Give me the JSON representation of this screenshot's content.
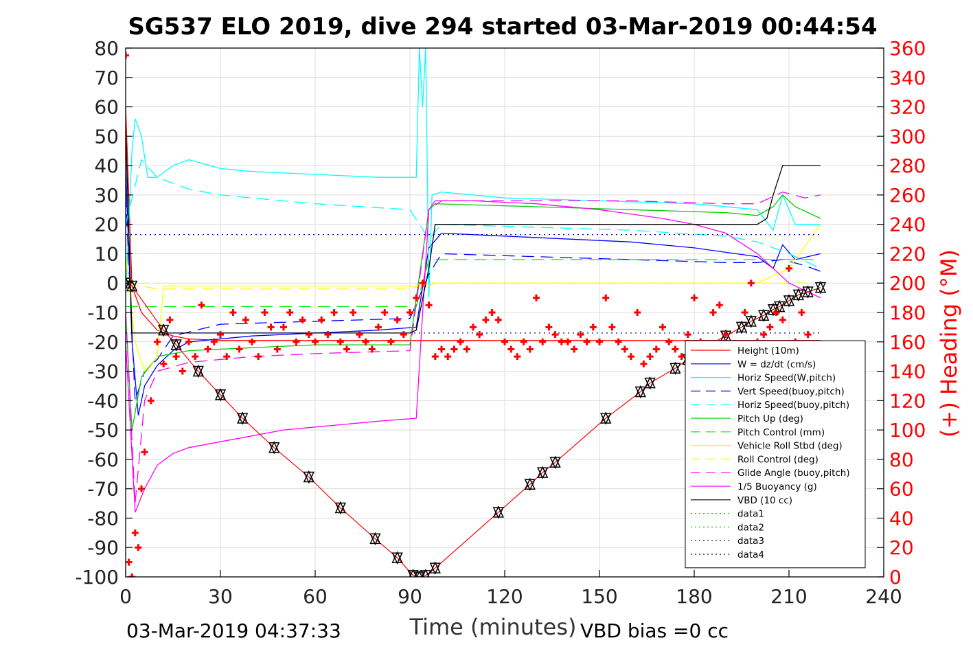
{
  "title": "SG537 ELO 2019, dive 294 started 03-Mar-2019 00:44:54",
  "footer": {
    "end_time": "03-Mar-2019 04:37:33",
    "vbd_bias": "VBD bias =0 cc"
  },
  "chart_data": {
    "type": "line",
    "xlabel": "Time (minutes)",
    "ylabel": "",
    "y2label": "(+) Heading (°M)",
    "xlim": [
      0,
      240
    ],
    "ylim": [
      -100,
      80
    ],
    "y2lim": [
      0,
      360
    ],
    "x_ticks": [
      "0",
      "30",
      "60",
      "90",
      "120",
      "150",
      "180",
      "210",
      "240"
    ],
    "y_ticks": [
      "80",
      "70",
      "60",
      "50",
      "40",
      "30",
      "20",
      "10",
      "0",
      "-10",
      "-20",
      "-30",
      "-40",
      "-50",
      "-60",
      "-70",
      "-80",
      "-90",
      "-100"
    ],
    "y2_ticks": [
      "360",
      "340",
      "320",
      "300",
      "280",
      "260",
      "240",
      "220",
      "200",
      "180",
      "160",
      "140",
      "120",
      "100",
      "80",
      "60",
      "40",
      "20",
      "0"
    ],
    "grid": true,
    "legend_position": "bottom-right",
    "colors": {
      "height": "#ff0000",
      "w": "#0000ff",
      "horiz_w": "#00ffff",
      "vert_buoy": "#0000ff",
      "horiz_buoy": "#00ffff",
      "pitch_up": "#00cc00",
      "pitch_control": "#00ee00",
      "roll": "#ffff00",
      "roll_control": "#ffff00",
      "glide": "#ff00ff",
      "buoyancy": "#ff00ff",
      "vbd": "#000000",
      "heading": "#ff0000"
    },
    "series": [
      {
        "name": "Height (10m)",
        "key": "height",
        "style": "solid",
        "x": [
          0,
          2,
          5,
          10,
          15,
          20,
          30,
          40,
          50,
          60,
          70,
          80,
          90,
          93,
          95,
          98,
          100,
          220
        ],
        "y": [
          60,
          -1,
          -10,
          -16,
          -18,
          -19,
          -19.5,
          -19.5,
          -19.5,
          -19.5,
          -19.5,
          -19.5,
          -19.5,
          -19.5,
          -19.5,
          -19.5,
          -19.5,
          -19.5
        ]
      },
      {
        "name": "W = dz/dt (cm/s)",
        "key": "w",
        "style": "solid",
        "x": [
          0,
          2,
          4,
          6,
          10,
          15,
          20,
          40,
          60,
          80,
          92,
          96,
          100,
          120,
          160,
          180,
          200,
          205,
          208,
          212,
          220
        ],
        "y": [
          40,
          -20,
          -45,
          -35,
          -28,
          -23,
          -20,
          -18,
          -17,
          -16,
          -15,
          12,
          17,
          16,
          14,
          12,
          9,
          5,
          13,
          8,
          10
        ]
      },
      {
        "name": "Horiz Speed(W,pitch)",
        "key": "horiz_w",
        "style": "solid",
        "x": [
          0,
          2,
          3,
          5,
          7,
          10,
          15,
          20,
          30,
          40,
          60,
          80,
          92,
          93,
          94,
          95,
          96,
          97,
          100,
          120,
          150,
          180,
          200,
          205,
          208,
          212,
          220
        ],
        "y": [
          -5,
          45,
          56,
          50,
          36,
          36,
          40,
          42,
          39,
          38,
          37,
          36,
          36,
          80,
          60,
          80,
          -5,
          30,
          31,
          29,
          28,
          27,
          25,
          18,
          30,
          20,
          20
        ]
      },
      {
        "name": "Vert Speed(buoy,pitch)",
        "key": "vert_buoy",
        "style": "dashed",
        "x": [
          0,
          3,
          6,
          10,
          15,
          30,
          60,
          90,
          96,
          100,
          130,
          160,
          190,
          200,
          208,
          215,
          220
        ],
        "y": [
          30,
          -40,
          -30,
          -26,
          -18,
          -14,
          -13,
          -12,
          3,
          10,
          9,
          8,
          7,
          7,
          8,
          6,
          4
        ]
      },
      {
        "name": "Horiz Speed(buoy,pitch)",
        "key": "horiz_buoy",
        "style": "dashed",
        "x": [
          0,
          5,
          10,
          20,
          30,
          60,
          90,
          96,
          100,
          130,
          160,
          190,
          200,
          210,
          220
        ],
        "y": [
          20,
          42,
          36,
          32,
          30,
          27,
          25,
          15,
          20,
          19,
          18,
          16,
          14,
          10,
          5
        ]
      },
      {
        "name": "Pitch Up (deg)",
        "key": "pitch_up",
        "style": "solid",
        "x": [
          0,
          2,
          5,
          10,
          20,
          40,
          60,
          90,
          92,
          96,
          98,
          130,
          160,
          190,
          200,
          205,
          208,
          212,
          220
        ],
        "y": [
          -10,
          -50,
          -32,
          -25,
          -23,
          -22,
          -21,
          -21,
          -5,
          25,
          27,
          26,
          25,
          24,
          23,
          26,
          30,
          26,
          22
        ]
      },
      {
        "name": "Pitch Control (mm)",
        "key": "pitch_control",
        "style": "dashed",
        "x": [
          0,
          5,
          10,
          30,
          60,
          90,
          92,
          96,
          98,
          130,
          160,
          200,
          210,
          220
        ],
        "y": [
          -8,
          -8,
          -8,
          -8,
          -8,
          -8,
          -8,
          8,
          8,
          8,
          8,
          8,
          8,
          8
        ]
      },
      {
        "name": "Vehicle Roll Stbd (deg)",
        "key": "roll",
        "style": "solid",
        "x": [
          0,
          3,
          6,
          10,
          12,
          30,
          50,
          70,
          90,
          92,
          96,
          98,
          140,
          180,
          200,
          210,
          220
        ],
        "y": [
          10,
          -20,
          -30,
          -25,
          -1,
          -1,
          -1,
          -1,
          -1,
          -1,
          -1,
          0,
          0,
          0,
          0,
          5,
          20
        ]
      },
      {
        "name": "Roll Control (deg)",
        "key": "roll_control",
        "style": "dashed",
        "x": [
          0,
          10,
          30,
          60,
          90,
          96,
          120,
          150,
          180,
          210,
          220
        ],
        "y": [
          0,
          -2,
          -2,
          -2,
          -2,
          0,
          0,
          0,
          0,
          0,
          0
        ]
      },
      {
        "name": "Glide Angle (buoy,pitch)",
        "key": "glide",
        "style": "dashed",
        "x": [
          0,
          3,
          6,
          10,
          20,
          40,
          60,
          90,
          96,
          100,
          130,
          160,
          190,
          200,
          208,
          215,
          220
        ],
        "y": [
          -10,
          -75,
          -40,
          -30,
          -27,
          -25,
          -24,
          -23,
          25,
          28,
          28,
          28,
          27,
          27,
          31,
          29,
          30
        ]
      },
      {
        "name": "1/5 Buoyancy (g)",
        "key": "buoyancy",
        "style": "solid",
        "x": [
          0,
          3,
          6,
          10,
          15,
          20,
          30,
          40,
          50,
          60,
          70,
          80,
          92,
          96,
          98,
          110,
          130,
          150,
          170,
          180,
          190,
          200,
          205,
          210,
          220
        ],
        "y": [
          -20,
          -78,
          -70,
          -62,
          -58,
          -56,
          -54,
          -52,
          -50,
          -49,
          -48,
          -47,
          -46,
          25,
          28,
          28,
          27,
          25,
          22,
          20,
          17,
          10,
          5,
          0,
          -5
        ]
      },
      {
        "name": "VBD (10 cc)",
        "key": "vbd",
        "style": "solid",
        "x": [
          0,
          2,
          3,
          90,
          92,
          96,
          98,
          100,
          180,
          185,
          200,
          203,
          205,
          208,
          220
        ],
        "y": [
          53,
          -17,
          -17,
          -17,
          -16,
          5,
          20,
          20,
          20,
          20,
          20,
          22,
          30,
          40,
          40
        ]
      },
      {
        "name": "data1",
        "key": "data1",
        "style": "dotted",
        "x": [],
        "y": []
      },
      {
        "name": "data2",
        "key": "data2",
        "style": "dotted",
        "x": [],
        "y": []
      },
      {
        "name": "data3",
        "key": "data3",
        "style": "dotted",
        "x": [
          0,
          220
        ],
        "y": [
          16.5,
          16.5
        ]
      },
      {
        "name": "data4",
        "key": "data4",
        "style": "dotted",
        "x": [
          0,
          220
        ],
        "y": [
          -17,
          -17
        ]
      },
      {
        "name": "",
        "key": "depth",
        "style": "marked",
        "x": [
          0,
          2,
          12,
          16,
          23,
          30,
          37,
          47,
          58,
          68,
          79,
          86,
          91,
          93,
          95,
          98,
          118,
          128,
          132,
          136,
          152,
          163,
          166,
          174,
          178,
          183,
          190,
          195,
          198,
          202,
          205,
          207,
          210,
          213,
          216,
          220
        ],
        "y": [
          0,
          -1,
          -16,
          -21,
          -30,
          -38,
          -46,
          -56,
          -66,
          -76.5,
          -87,
          -93.5,
          -99.5,
          -100,
          -99.5,
          -97,
          -78,
          -68.5,
          -64.5,
          -61,
          -46,
          -37,
          -34,
          -29,
          -26,
          -22,
          -18,
          -15,
          -13,
          -11,
          -9,
          -8,
          -6,
          -4,
          -3,
          -1.5
        ]
      },
      {
        "name": "",
        "key": "heading",
        "style": "markers",
        "axis": "right",
        "x": [
          0,
          1,
          2,
          3,
          4,
          5,
          6,
          8,
          10,
          12,
          14,
          16,
          18,
          20,
          22,
          24,
          26,
          28,
          30,
          32,
          34,
          36,
          38,
          40,
          42,
          44,
          46,
          48,
          50,
          52,
          54,
          56,
          58,
          60,
          62,
          64,
          66,
          68,
          70,
          72,
          74,
          76,
          78,
          80,
          82,
          84,
          86,
          88,
          90,
          92,
          94,
          96,
          98,
          100,
          102,
          104,
          106,
          108,
          110,
          112,
          114,
          116,
          118,
          120,
          122,
          124,
          126,
          128,
          130,
          132,
          134,
          136,
          138,
          140,
          142,
          144,
          146,
          148,
          150,
          152,
          154,
          156,
          158,
          160,
          162,
          164,
          166,
          168,
          170,
          172,
          174,
          176,
          178,
          180,
          182,
          184,
          186,
          188,
          190,
          192,
          194,
          196,
          198,
          200,
          202,
          204,
          206,
          208,
          210,
          212,
          214,
          216,
          218
        ],
        "y": [
          355,
          10,
          0,
          30,
          20,
          60,
          85,
          120,
          160,
          145,
          175,
          150,
          140,
          160,
          150,
          185,
          155,
          160,
          165,
          150,
          180,
          155,
          175,
          160,
          150,
          180,
          170,
          155,
          170,
          180,
          160,
          175,
          165,
          160,
          175,
          165,
          180,
          160,
          155,
          180,
          165,
          160,
          155,
          170,
          180,
          160,
          175,
          165,
          180,
          190,
          200,
          185,
          150,
          155,
          150,
          155,
          160,
          155,
          170,
          165,
          175,
          180,
          175,
          160,
          155,
          150,
          160,
          155,
          190,
          160,
          170,
          165,
          160,
          160,
          155,
          165,
          160,
          170,
          160,
          190,
          170,
          160,
          155,
          150,
          180,
          145,
          150,
          155,
          170,
          160,
          155,
          150,
          165,
          190,
          160,
          150,
          180,
          185,
          165,
          145,
          150,
          180,
          200,
          160,
          165,
          170,
          180,
          175,
          210,
          160,
          180,
          165,
          150
        ]
      }
    ]
  }
}
